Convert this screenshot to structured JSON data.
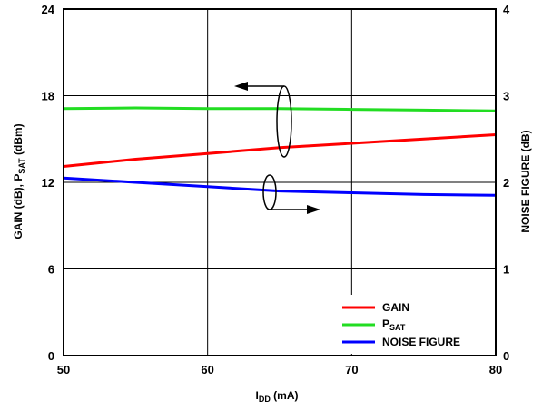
{
  "chart_data": {
    "type": "line",
    "xlabel": {
      "main": "I",
      "sub": "DD",
      "tail": " (mA)"
    },
    "ylabel_left": {
      "a": "GAIN (dB), P",
      "sub": "SAT",
      "b": " (dBm)"
    },
    "ylabel_right": "NOISE FIGURE (dB)",
    "xlim": [
      50,
      80
    ],
    "ylim_left": [
      0,
      24
    ],
    "ylim_right": [
      0,
      4
    ],
    "x_ticks": [
      "50",
      "60",
      "70",
      "80"
    ],
    "y_left_ticks": [
      "0",
      "6",
      "12",
      "18",
      "24"
    ],
    "y_right_ticks": [
      "0",
      "1",
      "2",
      "3",
      "4"
    ],
    "grid": true,
    "legend_position": "bottom-right",
    "series": [
      {
        "key": "gain",
        "name": "GAIN",
        "axis": "left",
        "color": "#ff0000",
        "x": [
          50,
          55,
          60,
          65,
          70,
          75,
          80
        ],
        "y": [
          13.1,
          13.6,
          14.0,
          14.4,
          14.7,
          15.0,
          15.3
        ]
      },
      {
        "key": "psat",
        "name": "P",
        "name_sub": "SAT",
        "axis": "left",
        "color": "#22dd22",
        "x": [
          50,
          55,
          60,
          65,
          70,
          75,
          80
        ],
        "y": [
          17.1,
          17.15,
          17.1,
          17.1,
          17.05,
          17.0,
          16.95
        ]
      },
      {
        "key": "nf",
        "name": "NOISE FIGURE",
        "axis": "right",
        "color": "#0000ff",
        "x": [
          50,
          55,
          60,
          65,
          70,
          75,
          80
        ],
        "y": [
          2.05,
          2.0,
          1.95,
          1.9,
          1.88,
          1.86,
          1.85
        ]
      }
    ]
  }
}
